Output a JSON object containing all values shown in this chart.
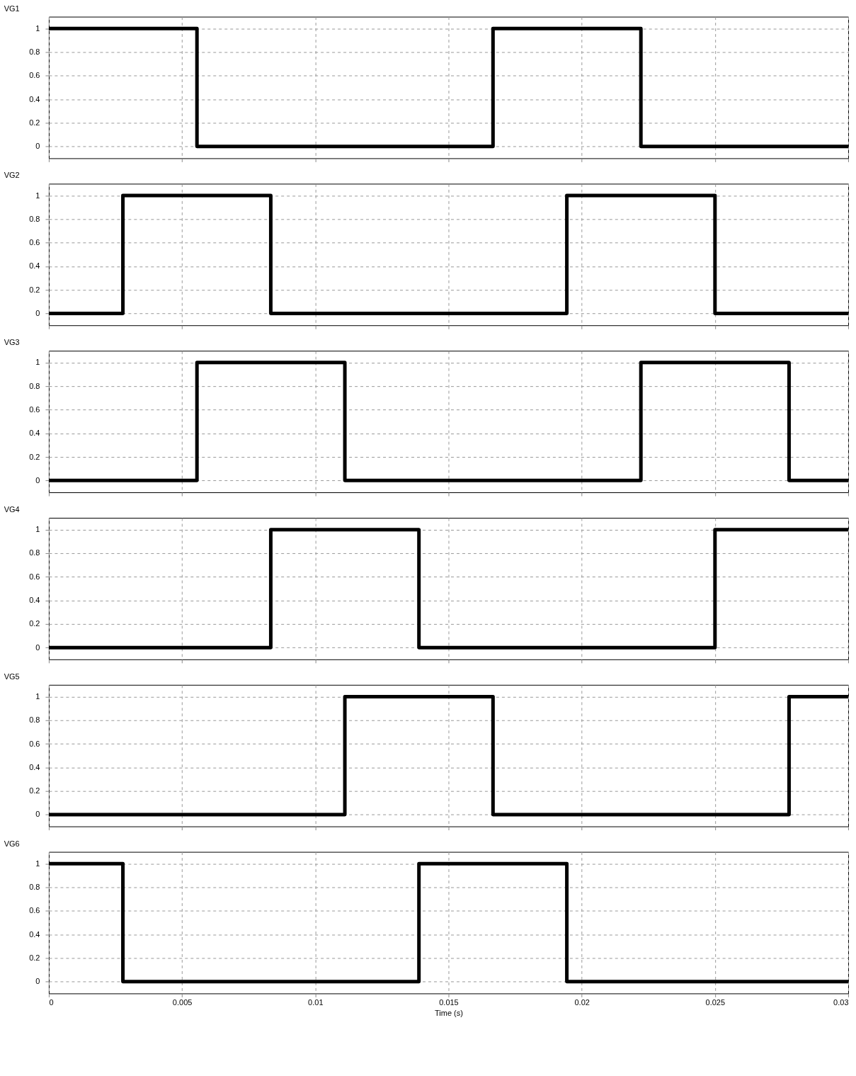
{
  "chart_data": [
    {
      "type": "step",
      "title": "VG1",
      "x": [
        0,
        0.00556,
        0.01667,
        0.02222,
        0.03
      ],
      "values": [
        1,
        0,
        1,
        0,
        0
      ],
      "color": "#000000",
      "xlim": [
        0,
        0.03
      ],
      "ylim": [
        -0.1,
        1.1
      ],
      "xticks": [
        0,
        0.005,
        0.01,
        0.015,
        0.02,
        0.025,
        0.03
      ],
      "yticks": [
        0,
        0.2,
        0.4,
        0.6,
        0.8,
        1
      ],
      "grid": true,
      "tick_labels": "y"
    },
    {
      "type": "step",
      "title": "VG2",
      "x": [
        0,
        0.00278,
        0.00833,
        0.01944,
        0.025,
        0.03
      ],
      "values": [
        0,
        1,
        0,
        1,
        0,
        0
      ],
      "color": "#000000",
      "xlim": [
        0,
        0.03
      ],
      "ylim": [
        -0.1,
        1.1
      ],
      "xticks": [
        0,
        0.005,
        0.01,
        0.015,
        0.02,
        0.025,
        0.03
      ],
      "yticks": [
        0,
        0.2,
        0.4,
        0.6,
        0.8,
        1
      ],
      "grid": true,
      "tick_labels": "y"
    },
    {
      "type": "step",
      "title": "VG3",
      "x": [
        0,
        0.00556,
        0.01111,
        0.02222,
        0.02778,
        0.03
      ],
      "values": [
        0,
        1,
        0,
        1,
        0,
        0
      ],
      "color": "#000000",
      "xlim": [
        0,
        0.03
      ],
      "ylim": [
        -0.1,
        1.1
      ],
      "xticks": [
        0,
        0.005,
        0.01,
        0.015,
        0.02,
        0.025,
        0.03
      ],
      "yticks": [
        0,
        0.2,
        0.4,
        0.6,
        0.8,
        1
      ],
      "grid": true,
      "tick_labels": "y"
    },
    {
      "type": "step",
      "title": "VG4",
      "x": [
        0,
        0.00833,
        0.01389,
        0.025,
        0.03
      ],
      "values": [
        0,
        1,
        0,
        1,
        1
      ],
      "color": "#000000",
      "xlim": [
        0,
        0.03
      ],
      "ylim": [
        -0.1,
        1.1
      ],
      "xticks": [
        0,
        0.005,
        0.01,
        0.015,
        0.02,
        0.025,
        0.03
      ],
      "yticks": [
        0,
        0.2,
        0.4,
        0.6,
        0.8,
        1
      ],
      "grid": true,
      "tick_labels": "y"
    },
    {
      "type": "step",
      "title": "VG5",
      "x": [
        0,
        0.01111,
        0.01667,
        0.02778,
        0.03
      ],
      "values": [
        0,
        1,
        0,
        1,
        1
      ],
      "color": "#000000",
      "xlim": [
        0,
        0.03
      ],
      "ylim": [
        -0.1,
        1.1
      ],
      "xticks": [
        0,
        0.005,
        0.01,
        0.015,
        0.02,
        0.025,
        0.03
      ],
      "yticks": [
        0,
        0.2,
        0.4,
        0.6,
        0.8,
        1
      ],
      "grid": true,
      "tick_labels": "y"
    },
    {
      "type": "step",
      "title": "VG6",
      "xlabel": "Time (s)",
      "x": [
        0,
        0.00278,
        0.01389,
        0.01944,
        0.03
      ],
      "values": [
        1,
        0,
        1,
        0,
        0
      ],
      "color": "#000000",
      "xlim": [
        0,
        0.03
      ],
      "ylim": [
        -0.1,
        1.1
      ],
      "xticks": [
        0,
        0.005,
        0.01,
        0.015,
        0.02,
        0.025,
        0.03
      ],
      "yticks": [
        0,
        0.2,
        0.4,
        0.6,
        0.8,
        1
      ],
      "grid": true
    }
  ]
}
